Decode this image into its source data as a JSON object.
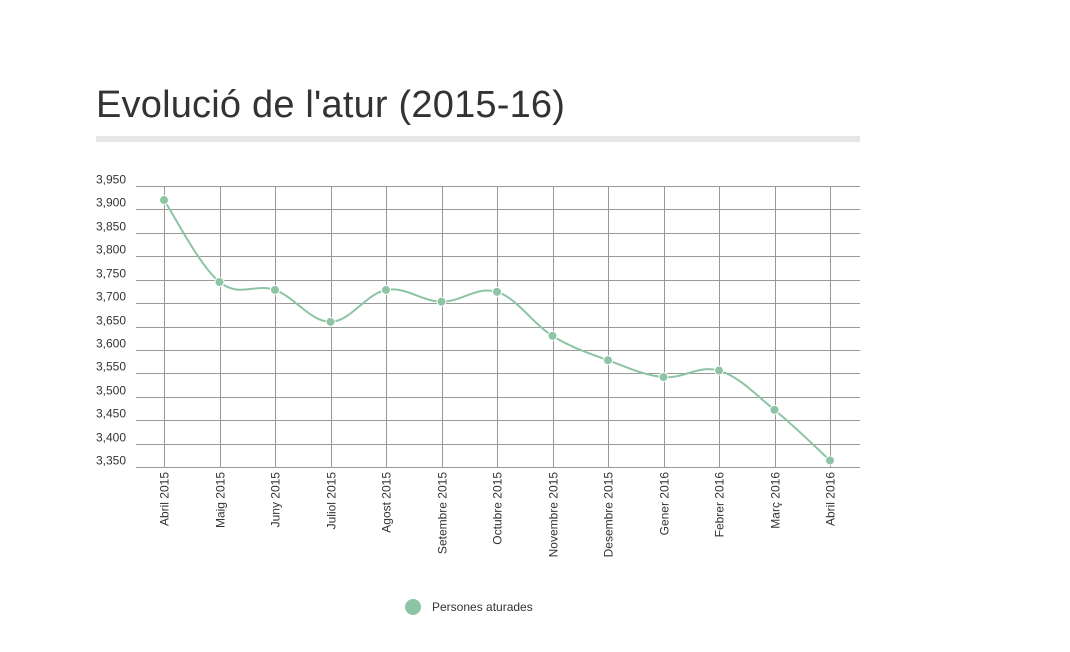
{
  "chart_data": {
    "type": "line",
    "title": "Evolució de l'atur (2015-16)",
    "xlabel": "",
    "ylabel": "",
    "categories": [
      "Abril 2015",
      "Maig 2015",
      "Juny 2015",
      "Juliol 2015",
      "Agost 2015",
      "Setembre 2015",
      "Octubre 2015",
      "Novembre 2015",
      "Desembre 2015",
      "Gener 2016",
      "Febrer 2016",
      "Març 2016",
      "Abril 2016"
    ],
    "series": [
      {
        "name": "Persones aturades",
        "color": "#8dc4a4",
        "values": [
          3920,
          3745,
          3728,
          3660,
          3728,
          3703,
          3724,
          3630,
          3578,
          3542,
          3556,
          3472,
          3364
        ]
      }
    ],
    "ylim": [
      3350,
      3950
    ],
    "yticks": [
      3950,
      3900,
      3850,
      3800,
      3750,
      3700,
      3650,
      3600,
      3550,
      3500,
      3450,
      3400,
      3350
    ],
    "ytick_labels": [
      "3,950",
      "3,900",
      "3,850",
      "3,800",
      "3,750",
      "3,700",
      "3,650",
      "3,600",
      "3,550",
      "3,500",
      "3,450",
      "3,400",
      "3,350"
    ],
    "grid": true,
    "legend": "bottom-center",
    "colors": {
      "line": "#8dc4a4",
      "grid": "#999999",
      "text": "#333333",
      "title_rule": "#e6e6e6"
    }
  }
}
